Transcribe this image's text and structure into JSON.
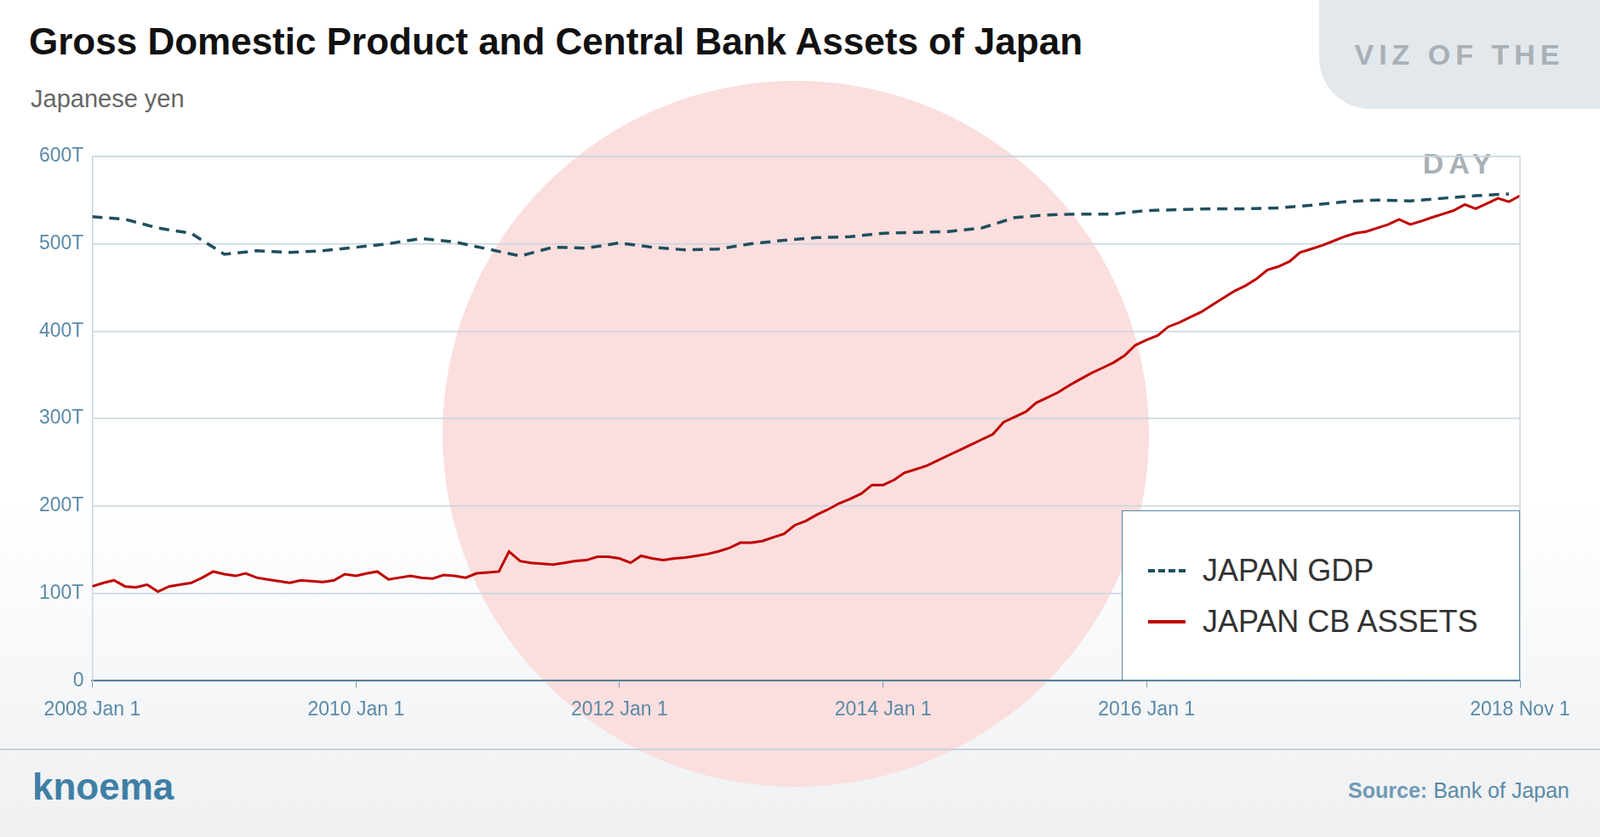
{
  "chart_data": {
    "type": "line",
    "title": "Gross Domestic Product and Central Bank Assets of Japan",
    "subtitle": "Japanese yen",
    "source_label": "Source:",
    "source": "Bank of Japan",
    "brand": "knoema",
    "badge": "VIZ OF THE DAY",
    "xlim": [
      "2008-01-01",
      "2018-11-01"
    ],
    "xticks": [
      {
        "value": "2008-01-01",
        "label": "2008 Jan 1"
      },
      {
        "value": "2010-01-01",
        "label": "2010 Jan 1"
      },
      {
        "value": "2012-01-01",
        "label": "2012 Jan 1"
      },
      {
        "value": "2014-01-01",
        "label": "2014 Jan 1"
      },
      {
        "value": "2016-01-01",
        "label": "2016 Jan 1"
      },
      {
        "value": "2018-11-01",
        "label": "2018 Nov 1"
      }
    ],
    "ylim": [
      0,
      600
    ],
    "yticks": [
      0,
      {
        "value": 100,
        "label": "100T"
      },
      {
        "value": 200,
        "label": "200T"
      },
      {
        "value": 300,
        "label": "300T"
      },
      {
        "value": 400,
        "label": "400T"
      },
      {
        "value": 500,
        "label": "500T"
      },
      {
        "value": 600,
        "label": "600T"
      }
    ],
    "grid": true,
    "legend": "lower right",
    "series": [
      {
        "name": "JAPAN GDP",
        "color": "#1f4e5f",
        "line_style": "dashed",
        "x": [
          "2008-01-01",
          "2008-04-01",
          "2008-07-01",
          "2008-10-01",
          "2009-01-01",
          "2009-04-01",
          "2009-07-01",
          "2009-10-01",
          "2010-01-01",
          "2010-04-01",
          "2010-07-01",
          "2010-10-01",
          "2011-01-01",
          "2011-04-01",
          "2011-07-01",
          "2011-10-01",
          "2012-01-01",
          "2012-04-01",
          "2012-07-01",
          "2012-10-01",
          "2013-01-01",
          "2013-04-01",
          "2013-07-01",
          "2013-10-01",
          "2014-01-01",
          "2014-04-01",
          "2014-07-01",
          "2014-10-01",
          "2015-01-01",
          "2015-04-01",
          "2015-07-01",
          "2015-10-01",
          "2016-01-01",
          "2016-04-01",
          "2016-07-01",
          "2016-10-01",
          "2017-01-01",
          "2017-04-01",
          "2017-07-01",
          "2017-10-01",
          "2018-01-01",
          "2018-04-01",
          "2018-07-01",
          "2018-10-01"
        ],
        "values": [
          531,
          528,
          518,
          512,
          488,
          492,
          490,
          492,
          496,
          500,
          506,
          502,
          494,
          486,
          496,
          495,
          501,
          496,
          493,
          494,
          500,
          504,
          507,
          508,
          512,
          513,
          514,
          518,
          530,
          533,
          534,
          534,
          538,
          539,
          540,
          540,
          541,
          544,
          548,
          550,
          549,
          552,
          555,
          557
        ]
      },
      {
        "name": "JAPAN CB ASSETS",
        "color": "#c00000",
        "line_style": "solid",
        "x": [
          "2008-01-01",
          "2008-02-01",
          "2008-03-01",
          "2008-04-01",
          "2008-05-01",
          "2008-06-01",
          "2008-07-01",
          "2008-08-01",
          "2008-09-01",
          "2008-10-01",
          "2008-11-01",
          "2008-12-01",
          "2009-01-01",
          "2009-02-01",
          "2009-03-01",
          "2009-04-01",
          "2009-05-01",
          "2009-06-01",
          "2009-07-01",
          "2009-08-01",
          "2009-09-01",
          "2009-10-01",
          "2009-11-01",
          "2009-12-01",
          "2010-01-01",
          "2010-02-01",
          "2010-03-01",
          "2010-04-01",
          "2010-05-01",
          "2010-06-01",
          "2010-07-01",
          "2010-08-01",
          "2010-09-01",
          "2010-10-01",
          "2010-11-01",
          "2010-12-01",
          "2011-01-01",
          "2011-02-01",
          "2011-03-01",
          "2011-04-01",
          "2011-05-01",
          "2011-06-01",
          "2011-07-01",
          "2011-08-01",
          "2011-09-01",
          "2011-10-01",
          "2011-11-01",
          "2011-12-01",
          "2012-01-01",
          "2012-02-01",
          "2012-03-01",
          "2012-04-01",
          "2012-05-01",
          "2012-06-01",
          "2012-07-01",
          "2012-08-01",
          "2012-09-01",
          "2012-10-01",
          "2012-11-01",
          "2012-12-01",
          "2013-01-01",
          "2013-02-01",
          "2013-03-01",
          "2013-04-01",
          "2013-05-01",
          "2013-06-01",
          "2013-07-01",
          "2013-08-01",
          "2013-09-01",
          "2013-10-01",
          "2013-11-01",
          "2013-12-01",
          "2014-01-01",
          "2014-02-01",
          "2014-03-01",
          "2014-04-01",
          "2014-05-01",
          "2014-06-01",
          "2014-07-01",
          "2014-08-01",
          "2014-09-01",
          "2014-10-01",
          "2014-11-01",
          "2014-12-01",
          "2015-01-01",
          "2015-02-01",
          "2015-03-01",
          "2015-04-01",
          "2015-05-01",
          "2015-06-01",
          "2015-07-01",
          "2015-08-01",
          "2015-09-01",
          "2015-10-01",
          "2015-11-01",
          "2015-12-01",
          "2016-01-01",
          "2016-02-01",
          "2016-03-01",
          "2016-04-01",
          "2016-05-01",
          "2016-06-01",
          "2016-07-01",
          "2016-08-01",
          "2016-09-01",
          "2016-10-01",
          "2016-11-01",
          "2016-12-01",
          "2017-01-01",
          "2017-02-01",
          "2017-03-01",
          "2017-04-01",
          "2017-05-01",
          "2017-06-01",
          "2017-07-01",
          "2017-08-01",
          "2017-09-01",
          "2017-10-01",
          "2017-11-01",
          "2017-12-01",
          "2018-01-01",
          "2018-02-01",
          "2018-03-01",
          "2018-04-01",
          "2018-05-01",
          "2018-06-01",
          "2018-07-01",
          "2018-08-01",
          "2018-09-01",
          "2018-10-01",
          "2018-11-01"
        ],
        "values": [
          108,
          112,
          115,
          108,
          107,
          110,
          102,
          108,
          110,
          112,
          118,
          125,
          122,
          120,
          123,
          118,
          116,
          114,
          112,
          115,
          114,
          113,
          115,
          122,
          120,
          123,
          125,
          116,
          118,
          120,
          118,
          117,
          121,
          120,
          118,
          123,
          124,
          125,
          148,
          137,
          135,
          134,
          133,
          135,
          137,
          138,
          142,
          142,
          140,
          135,
          143,
          140,
          138,
          140,
          141,
          143,
          145,
          148,
          152,
          158,
          158,
          160,
          164,
          168,
          178,
          183,
          190,
          196,
          203,
          208,
          214,
          224,
          224,
          230,
          238,
          242,
          246,
          252,
          258,
          264,
          270,
          276,
          282,
          296,
          302,
          308,
          318,
          324,
          330,
          338,
          345,
          352,
          358,
          364,
          372,
          384,
          390,
          395,
          405,
          410,
          416,
          422,
          430,
          438,
          446,
          452,
          460,
          470,
          474,
          480,
          490,
          494,
          498,
          503,
          508,
          512,
          514,
          518,
          522,
          528,
          522,
          526,
          530,
          534,
          538,
          545,
          540,
          546,
          552,
          548,
          555
        ]
      }
    ]
  }
}
